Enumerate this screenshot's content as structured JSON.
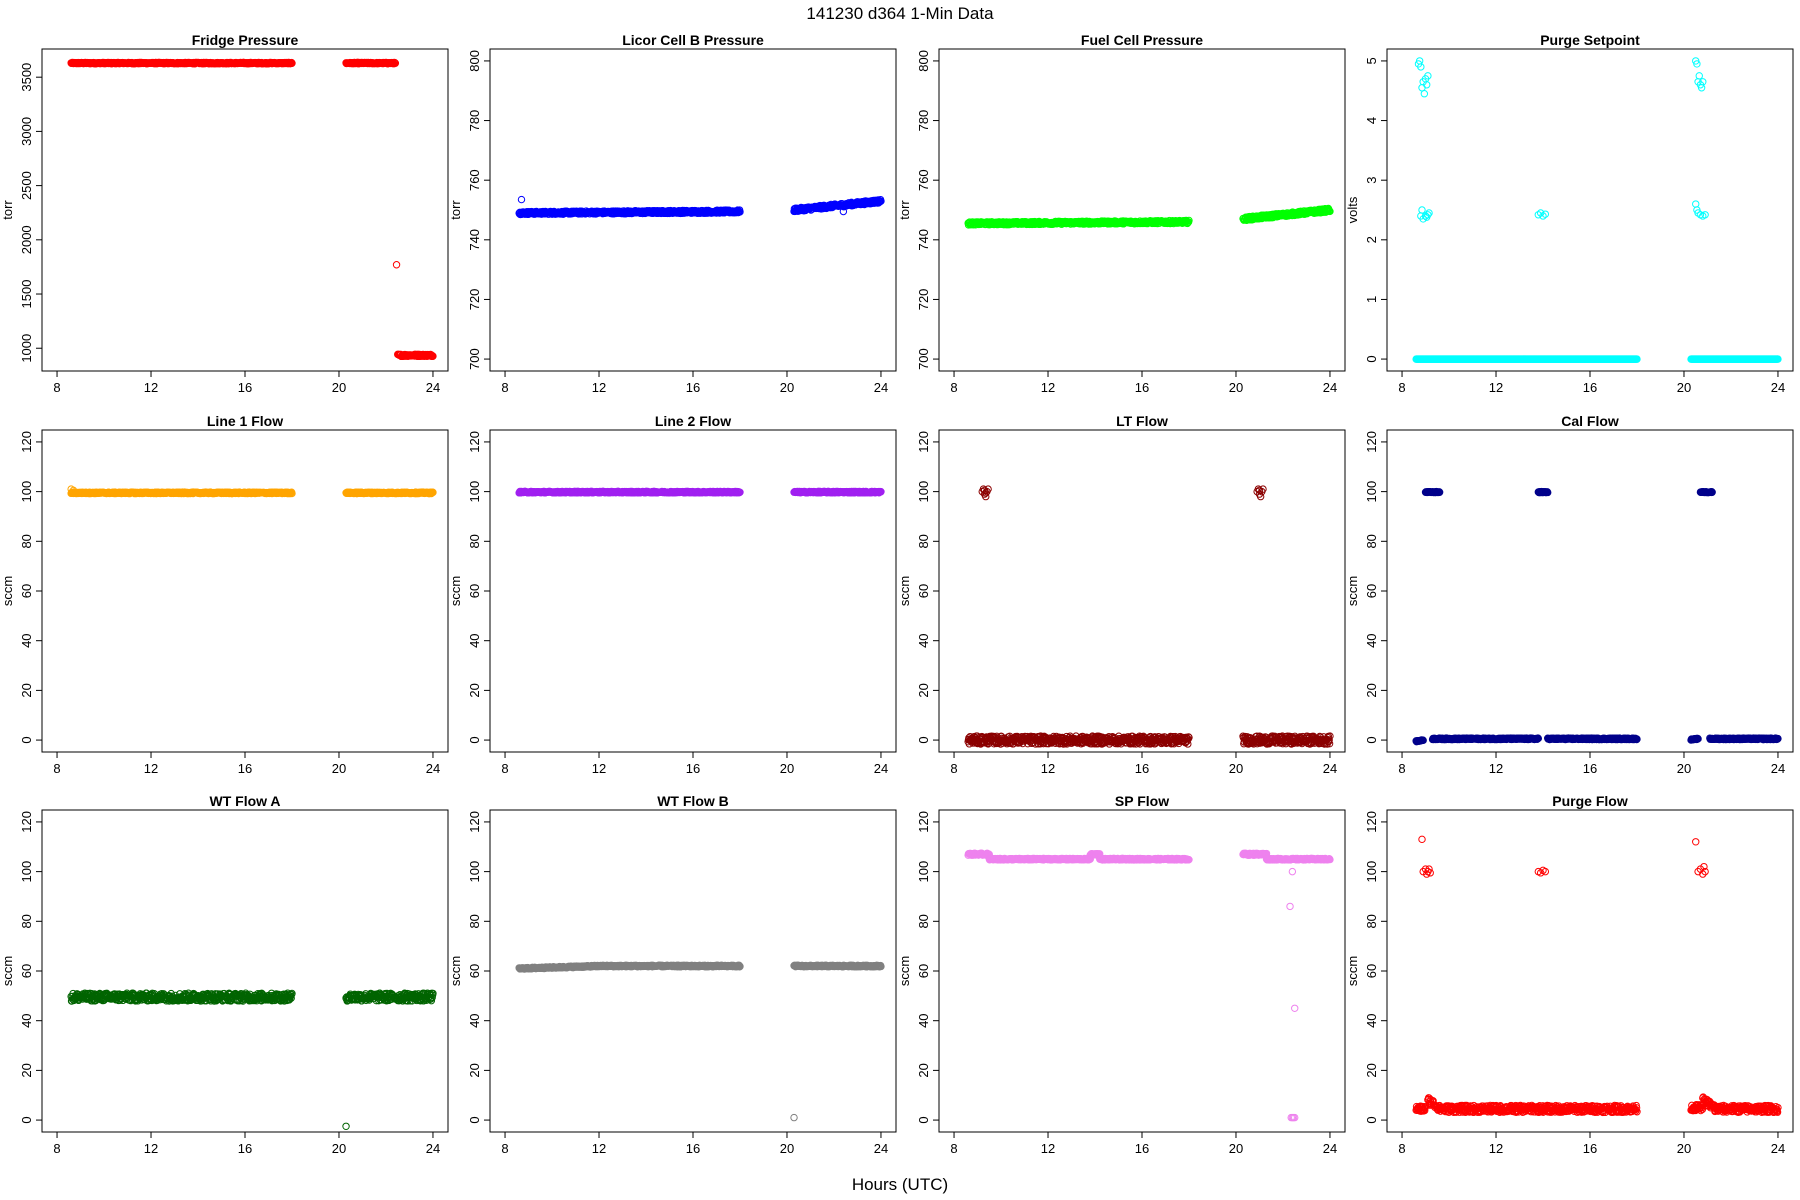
{
  "title": "141230   d364   1-Min Data",
  "xlabel": "Hours (UTC)",
  "chart_data": [
    {
      "type": "scatter",
      "title": "Fridge Pressure",
      "ylabel": "torr",
      "color": "#ff0000",
      "xlim": [
        8,
        24
      ],
      "ylim": [
        900,
        3650
      ],
      "xticks": [
        8,
        12,
        16,
        20,
        24
      ],
      "yticks": [
        1000,
        1500,
        2000,
        2500,
        3000,
        3500
      ],
      "segments": [
        {
          "x": [
            8.6,
            18.0
          ],
          "y": [
            3630,
            3630
          ],
          "jitter": 6
        },
        {
          "x": [
            20.3,
            22.4
          ],
          "y": [
            3630,
            3630
          ],
          "jitter": 6
        },
        {
          "x": [
            22.5,
            24.0
          ],
          "y": [
            935,
            935
          ],
          "jitter": 10
        }
      ],
      "points": [
        [
          22.45,
          1770
        ]
      ]
    },
    {
      "type": "scatter",
      "title": "Licor Cell B Pressure",
      "ylabel": "torr",
      "color": "#0000ff",
      "xlim": [
        8,
        24
      ],
      "ylim": [
        700,
        800
      ],
      "xticks": [
        8,
        12,
        16,
        20,
        24
      ],
      "yticks": [
        700,
        720,
        740,
        760,
        780,
        800
      ],
      "segments": [
        {
          "x": [
            8.6,
            18.0
          ],
          "y": [
            749,
            749.5
          ],
          "jitter": 0.5
        },
        {
          "x": [
            20.3,
            24.0
          ],
          "y": [
            750,
            753
          ],
          "jitter": 0.6
        }
      ],
      "points": [
        [
          8.7,
          753.5
        ],
        [
          22.4,
          749.5
        ]
      ]
    },
    {
      "type": "scatter",
      "title": "Fuel Cell Pressure",
      "ylabel": "torr",
      "color": "#00ff00",
      "xlim": [
        8,
        24
      ],
      "ylim": [
        700,
        800
      ],
      "xticks": [
        8,
        12,
        16,
        20,
        24
      ],
      "yticks": [
        700,
        720,
        740,
        760,
        780,
        800
      ],
      "segments": [
        {
          "x": [
            8.6,
            18.0
          ],
          "y": [
            745.5,
            746
          ],
          "jitter": 0.5
        },
        {
          "x": [
            20.3,
            24.0
          ],
          "y": [
            747,
            750
          ],
          "jitter": 0.6
        }
      ],
      "points": []
    },
    {
      "type": "scatter",
      "title": "Purge Setpoint",
      "ylabel": "volts",
      "color": "#00ffff",
      "xlim": [
        8,
        24
      ],
      "ylim": [
        0,
        5
      ],
      "xticks": [
        8,
        12,
        16,
        20,
        24
      ],
      "yticks": [
        0,
        1,
        2,
        3,
        4,
        5
      ],
      "segments": [
        {
          "x": [
            8.6,
            18.0
          ],
          "y": [
            0,
            0
          ],
          "jitter": 0
        },
        {
          "x": [
            20.3,
            24.0
          ],
          "y": [
            0,
            0
          ],
          "jitter": 0
        }
      ],
      "points": [
        [
          8.7,
          4.95
        ],
        [
          8.75,
          5.0
        ],
        [
          8.8,
          4.9
        ],
        [
          8.85,
          4.55
        ],
        [
          8.9,
          4.65
        ],
        [
          8.95,
          4.45
        ],
        [
          9.0,
          4.7
        ],
        [
          9.05,
          4.6
        ],
        [
          9.1,
          4.75
        ],
        [
          8.8,
          2.4
        ],
        [
          8.85,
          2.5
        ],
        [
          8.9,
          2.35
        ],
        [
          9.0,
          2.4
        ],
        [
          9.05,
          2.38
        ],
        [
          9.1,
          2.42
        ],
        [
          9.15,
          2.45
        ],
        [
          13.8,
          2.42
        ],
        [
          13.9,
          2.45
        ],
        [
          14.0,
          2.4
        ],
        [
          14.1,
          2.43
        ],
        [
          20.5,
          5.0
        ],
        [
          20.55,
          4.95
        ],
        [
          20.6,
          4.65
        ],
        [
          20.65,
          4.75
        ],
        [
          20.7,
          4.6
        ],
        [
          20.75,
          4.55
        ],
        [
          20.8,
          4.65
        ],
        [
          20.5,
          2.6
        ],
        [
          20.55,
          2.5
        ],
        [
          20.6,
          2.45
        ],
        [
          20.7,
          2.42
        ],
        [
          20.8,
          2.4
        ],
        [
          20.9,
          2.42
        ]
      ]
    },
    {
      "type": "scatter",
      "title": "Line 1 Flow",
      "ylabel": "sccm",
      "color": "#ffa500",
      "xlim": [
        8,
        24
      ],
      "ylim": [
        0,
        120
      ],
      "xticks": [
        8,
        12,
        16,
        20,
        24
      ],
      "yticks": [
        0,
        20,
        40,
        60,
        80,
        100,
        120
      ],
      "segments": [
        {
          "x": [
            8.6,
            18.0
          ],
          "y": [
            99.5,
            99.5
          ],
          "jitter": 0.3
        },
        {
          "x": [
            20.3,
            24.0
          ],
          "y": [
            99.5,
            99.5
          ],
          "jitter": 0.3
        }
      ],
      "points": [
        [
          8.6,
          101
        ],
        [
          8.7,
          100.5
        ]
      ]
    },
    {
      "type": "scatter",
      "title": "Line 2 Flow",
      "ylabel": "sccm",
      "color": "#a020f0",
      "xlim": [
        8,
        24
      ],
      "ylim": [
        0,
        120
      ],
      "xticks": [
        8,
        12,
        16,
        20,
        24
      ],
      "yticks": [
        0,
        20,
        40,
        60,
        80,
        100,
        120
      ],
      "segments": [
        {
          "x": [
            8.6,
            18.0
          ],
          "y": [
            99.8,
            99.8
          ],
          "jitter": 0.3
        },
        {
          "x": [
            20.3,
            24.0
          ],
          "y": [
            99.8,
            99.8
          ],
          "jitter": 0.3
        }
      ],
      "points": []
    },
    {
      "type": "scatter",
      "title": "LT Flow",
      "ylabel": "sccm",
      "color": "#8b0000",
      "xlim": [
        8,
        24
      ],
      "ylim": [
        0,
        120
      ],
      "xticks": [
        8,
        12,
        16,
        20,
        24
      ],
      "yticks": [
        0,
        20,
        40,
        60,
        80,
        100,
        120
      ],
      "segments": [
        {
          "x": [
            8.6,
            18.0
          ],
          "y": [
            0,
            0
          ],
          "jitter": 1.6
        },
        {
          "x": [
            20.3,
            24.0
          ],
          "y": [
            0,
            0
          ],
          "jitter": 1.6
        }
      ],
      "points": [
        [
          9.2,
          100
        ],
        [
          9.25,
          101
        ],
        [
          9.3,
          99
        ],
        [
          9.35,
          98
        ],
        [
          9.4,
          100
        ],
        [
          9.45,
          101
        ],
        [
          9.3,
          100.5
        ],
        [
          9.35,
          99.5
        ],
        [
          20.9,
          100
        ],
        [
          20.95,
          101
        ],
        [
          21.0,
          99
        ],
        [
          21.05,
          98
        ],
        [
          21.1,
          100
        ],
        [
          21.15,
          101
        ],
        [
          21.0,
          100.5
        ]
      ]
    },
    {
      "type": "scatter",
      "title": "Cal Flow",
      "ylabel": "sccm",
      "color": "#00008b",
      "xlim": [
        8,
        24
      ],
      "ylim": [
        0,
        120
      ],
      "xticks": [
        8,
        12,
        16,
        20,
        24
      ],
      "yticks": [
        0,
        20,
        40,
        60,
        80,
        100,
        120
      ],
      "segments": [
        {
          "x": [
            8.6,
            8.9
          ],
          "y": [
            -0.5,
            0
          ],
          "jitter": 0.2
        },
        {
          "x": [
            9.3,
            13.8
          ],
          "y": [
            0.5,
            0.5
          ],
          "jitter": 0.3
        },
        {
          "x": [
            14.2,
            18.0
          ],
          "y": [
            0.5,
            0.5
          ],
          "jitter": 0.3
        },
        {
          "x": [
            20.3,
            20.6
          ],
          "y": [
            0.2,
            0.5
          ],
          "jitter": 0.2
        },
        {
          "x": [
            21.1,
            24.0
          ],
          "y": [
            0.5,
            0.5
          ],
          "jitter": 0.3
        },
        {
          "x": [
            9.0,
            9.6
          ],
          "y": [
            99.8,
            99.8
          ],
          "jitter": 0.2
        },
        {
          "x": [
            13.8,
            14.2
          ],
          "y": [
            99.8,
            99.8
          ],
          "jitter": 0.2
        },
        {
          "x": [
            20.7,
            21.2
          ],
          "y": [
            99.8,
            99.8
          ],
          "jitter": 0.2
        }
      ],
      "points": []
    },
    {
      "type": "scatter",
      "title": "WT Flow A",
      "ylabel": "sccm",
      "color": "#006400",
      "xlim": [
        8,
        24
      ],
      "ylim": [
        0,
        120
      ],
      "xticks": [
        8,
        12,
        16,
        20,
        24
      ],
      "yticks": [
        0,
        20,
        40,
        60,
        80,
        100,
        120
      ],
      "segments": [
        {
          "x": [
            8.6,
            18.0
          ],
          "y": [
            49.5,
            49.5
          ],
          "jitter": 1.6
        },
        {
          "x": [
            20.3,
            24.0
          ],
          "y": [
            49.5,
            49.5
          ],
          "jitter": 1.6
        }
      ],
      "points": [
        [
          20.3,
          -2.5
        ]
      ]
    },
    {
      "type": "scatter",
      "title": "WT Flow B",
      "ylabel": "sccm",
      "color": "#808080",
      "xlim": [
        8,
        24
      ],
      "ylim": [
        0,
        120
      ],
      "xticks": [
        8,
        12,
        16,
        20,
        24
      ],
      "yticks": [
        0,
        20,
        40,
        60,
        80,
        100,
        120
      ],
      "segments": [
        {
          "x": [
            8.6,
            12.0
          ],
          "y": [
            61,
            62
          ],
          "jitter": 0.3
        },
        {
          "x": [
            12.0,
            18.0
          ],
          "y": [
            62,
            62
          ],
          "jitter": 0.3
        },
        {
          "x": [
            20.3,
            24.0
          ],
          "y": [
            62,
            62
          ],
          "jitter": 0.3
        }
      ],
      "points": [
        [
          20.3,
          1
        ]
      ]
    },
    {
      "type": "scatter",
      "title": "SP Flow",
      "ylabel": "sccm",
      "color": "#ee82ee",
      "xlim": [
        8,
        24
      ],
      "ylim": [
        0,
        120
      ],
      "xticks": [
        8,
        12,
        16,
        20,
        24
      ],
      "yticks": [
        0,
        20,
        40,
        60,
        80,
        100,
        120
      ],
      "segments": [
        {
          "x": [
            8.6,
            9.5
          ],
          "y": [
            107,
            107
          ],
          "jitter": 0.4
        },
        {
          "x": [
            9.5,
            13.8
          ],
          "y": [
            105,
            105
          ],
          "jitter": 0.3
        },
        {
          "x": [
            13.8,
            14.2
          ],
          "y": [
            107,
            107
          ],
          "jitter": 0.3
        },
        {
          "x": [
            14.2,
            18.0
          ],
          "y": [
            105,
            105
          ],
          "jitter": 0.3
        },
        {
          "x": [
            20.3,
            21.3
          ],
          "y": [
            107,
            107
          ],
          "jitter": 0.4
        },
        {
          "x": [
            21.3,
            24.0
          ],
          "y": [
            105,
            105
          ],
          "jitter": 0.3
        }
      ],
      "points": [
        [
          22.3,
          86
        ],
        [
          22.4,
          100
        ],
        [
          22.5,
          45
        ],
        [
          22.35,
          1
        ],
        [
          22.4,
          1
        ],
        [
          22.45,
          1
        ],
        [
          22.5,
          1
        ]
      ]
    },
    {
      "type": "scatter",
      "title": "Purge Flow",
      "ylabel": "sccm",
      "color": "#ff0000",
      "xlim": [
        8,
        24
      ],
      "ylim": [
        0,
        120
      ],
      "xticks": [
        8,
        12,
        16,
        20,
        24
      ],
      "yticks": [
        0,
        20,
        40,
        60,
        80,
        100,
        120
      ],
      "segments": [
        {
          "x": [
            8.6,
            9.0
          ],
          "y": [
            4.5,
            4.5
          ],
          "jitter": 1.2
        },
        {
          "x": [
            9.1,
            9.6
          ],
          "y": [
            8,
            5
          ],
          "jitter": 1.5
        },
        {
          "x": [
            9.6,
            18.0
          ],
          "y": [
            4.5,
            4.5
          ],
          "jitter": 1.4
        },
        {
          "x": [
            20.3,
            20.8
          ],
          "y": [
            5,
            5
          ],
          "jitter": 1.2
        },
        {
          "x": [
            20.8,
            21.3
          ],
          "y": [
            8,
            5
          ],
          "jitter": 1.5
        },
        {
          "x": [
            21.3,
            24.0
          ],
          "y": [
            4.5,
            4.5
          ],
          "jitter": 1.4
        }
      ],
      "points": [
        [
          8.85,
          113
        ],
        [
          8.9,
          100
        ],
        [
          9.0,
          101
        ],
        [
          9.05,
          99
        ],
        [
          9.1,
          100
        ],
        [
          9.15,
          101
        ],
        [
          9.2,
          99.5
        ],
        [
          13.8,
          100
        ],
        [
          13.9,
          99.5
        ],
        [
          14.0,
          100.5
        ],
        [
          14.1,
          100
        ],
        [
          20.5,
          112
        ],
        [
          20.6,
          100
        ],
        [
          20.7,
          101
        ],
        [
          20.8,
          99
        ],
        [
          20.85,
          102
        ],
        [
          20.9,
          100
        ]
      ]
    }
  ]
}
